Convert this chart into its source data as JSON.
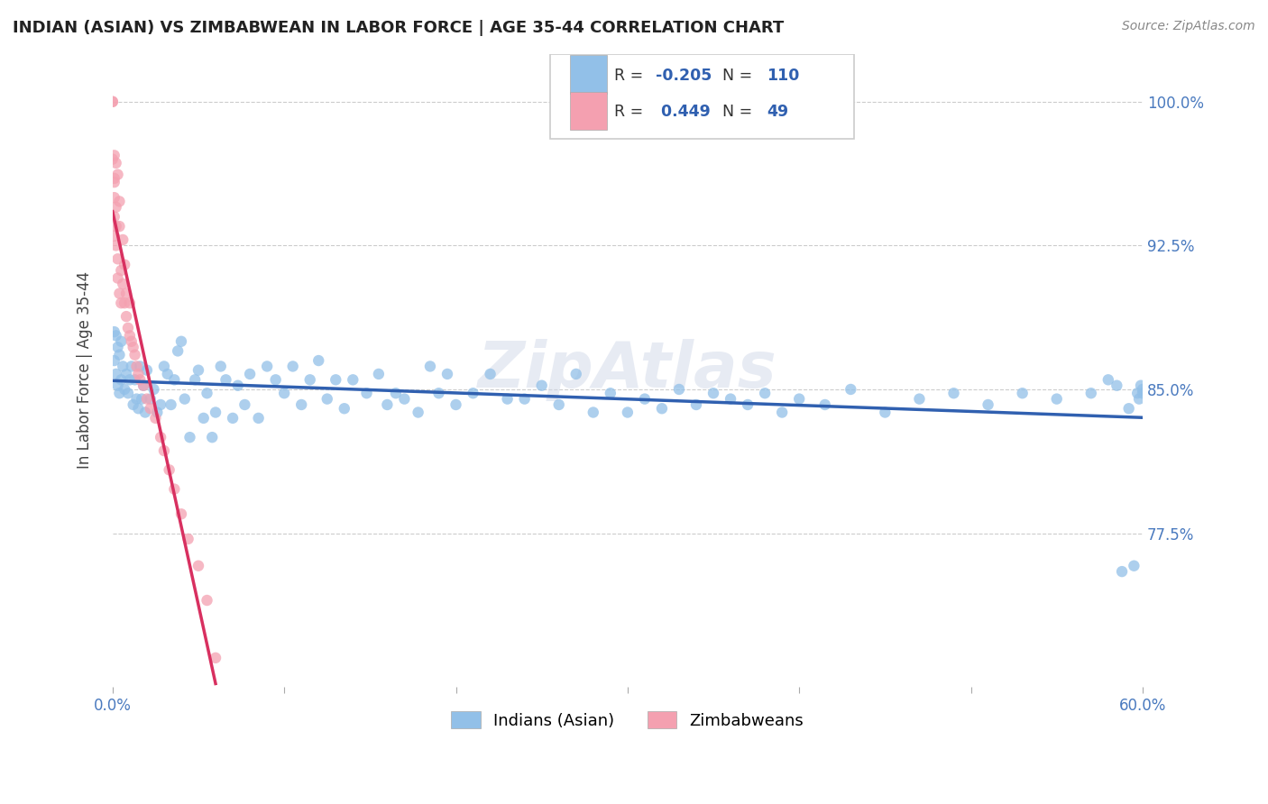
{
  "title": "INDIAN (ASIAN) VS ZIMBABWEAN IN LABOR FORCE | AGE 35-44 CORRELATION CHART",
  "source_text": "Source: ZipAtlas.com",
  "ylabel": "In Labor Force | Age 35-44",
  "x_min": 0.0,
  "x_max": 0.6,
  "y_min": 0.695,
  "y_max": 1.025,
  "x_ticks": [
    0.0,
    0.1,
    0.2,
    0.3,
    0.4,
    0.5,
    0.6
  ],
  "x_tick_labels": [
    "0.0%",
    "",
    "",
    "",
    "",
    "",
    "60.0%"
  ],
  "y_ticks": [
    0.775,
    0.85,
    0.925,
    1.0
  ],
  "y_tick_labels": [
    "77.5%",
    "85.0%",
    "92.5%",
    "100.0%"
  ],
  "grid_color": "#cccccc",
  "background_color": "#ffffff",
  "indian_color": "#92c0e8",
  "zimbabwean_color": "#f4a0b0",
  "indian_line_color": "#3060b0",
  "zimbabwean_line_color": "#d83060",
  "indian_R": -0.205,
  "indian_N": 110,
  "zimbabwean_R": 0.449,
  "zimbabwean_N": 49,
  "legend_label_indian": "Indians (Asian)",
  "legend_label_zimbabwean": "Zimbabweans",
  "watermark_text": "ZipAtlas",
  "indian_x": [
    0.001,
    0.001,
    0.002,
    0.002,
    0.003,
    0.003,
    0.004,
    0.004,
    0.005,
    0.005,
    0.006,
    0.007,
    0.008,
    0.009,
    0.01,
    0.011,
    0.012,
    0.013,
    0.014,
    0.015,
    0.016,
    0.017,
    0.018,
    0.019,
    0.02,
    0.022,
    0.024,
    0.026,
    0.028,
    0.03,
    0.032,
    0.034,
    0.036,
    0.038,
    0.04,
    0.042,
    0.045,
    0.048,
    0.05,
    0.053,
    0.055,
    0.058,
    0.06,
    0.063,
    0.066,
    0.07,
    0.073,
    0.077,
    0.08,
    0.085,
    0.09,
    0.095,
    0.1,
    0.105,
    0.11,
    0.115,
    0.12,
    0.125,
    0.13,
    0.135,
    0.14,
    0.148,
    0.155,
    0.16,
    0.165,
    0.17,
    0.178,
    0.185,
    0.19,
    0.195,
    0.2,
    0.21,
    0.22,
    0.23,
    0.24,
    0.25,
    0.26,
    0.27,
    0.28,
    0.29,
    0.3,
    0.31,
    0.32,
    0.33,
    0.34,
    0.35,
    0.36,
    0.37,
    0.38,
    0.39,
    0.4,
    0.415,
    0.43,
    0.45,
    0.47,
    0.49,
    0.51,
    0.53,
    0.55,
    0.57,
    0.58,
    0.585,
    0.588,
    0.592,
    0.595,
    0.597,
    0.598,
    0.599,
    0.6,
    0.6
  ],
  "indian_y": [
    0.88,
    0.865,
    0.878,
    0.858,
    0.872,
    0.852,
    0.868,
    0.848,
    0.875,
    0.855,
    0.862,
    0.85,
    0.858,
    0.848,
    0.855,
    0.862,
    0.842,
    0.855,
    0.845,
    0.84,
    0.862,
    0.845,
    0.852,
    0.838,
    0.86,
    0.845,
    0.85,
    0.838,
    0.842,
    0.862,
    0.858,
    0.842,
    0.855,
    0.87,
    0.875,
    0.845,
    0.825,
    0.855,
    0.86,
    0.835,
    0.848,
    0.825,
    0.838,
    0.862,
    0.855,
    0.835,
    0.852,
    0.842,
    0.858,
    0.835,
    0.862,
    0.855,
    0.848,
    0.862,
    0.842,
    0.855,
    0.865,
    0.845,
    0.855,
    0.84,
    0.855,
    0.848,
    0.858,
    0.842,
    0.848,
    0.845,
    0.838,
    0.862,
    0.848,
    0.858,
    0.842,
    0.848,
    0.858,
    0.845,
    0.845,
    0.852,
    0.842,
    0.858,
    0.838,
    0.848,
    0.838,
    0.845,
    0.84,
    0.85,
    0.842,
    0.848,
    0.845,
    0.842,
    0.848,
    0.838,
    0.845,
    0.842,
    0.85,
    0.838,
    0.845,
    0.848,
    0.842,
    0.848,
    0.845,
    0.848,
    0.855,
    0.852,
    0.755,
    0.84,
    0.758,
    0.848,
    0.845,
    0.852,
    0.848,
    0.85
  ],
  "zimb_x": [
    0.0,
    0.0,
    0.0,
    0.001,
    0.001,
    0.001,
    0.001,
    0.001,
    0.001,
    0.002,
    0.002,
    0.002,
    0.002,
    0.003,
    0.003,
    0.003,
    0.004,
    0.004,
    0.004,
    0.005,
    0.005,
    0.006,
    0.006,
    0.007,
    0.007,
    0.008,
    0.008,
    0.009,
    0.01,
    0.01,
    0.011,
    0.012,
    0.013,
    0.014,
    0.015,
    0.016,
    0.018,
    0.02,
    0.022,
    0.025,
    0.028,
    0.03,
    0.033,
    0.036,
    0.04,
    0.044,
    0.05,
    0.055,
    0.06
  ],
  "zimb_y": [
    1.0,
    1.0,
    0.97,
    0.96,
    0.95,
    0.94,
    0.93,
    0.958,
    0.972,
    0.945,
    0.935,
    0.925,
    0.968,
    0.918,
    0.908,
    0.962,
    0.9,
    0.935,
    0.948,
    0.895,
    0.912,
    0.905,
    0.928,
    0.895,
    0.915,
    0.888,
    0.9,
    0.882,
    0.878,
    0.895,
    0.875,
    0.872,
    0.868,
    0.862,
    0.858,
    0.855,
    0.852,
    0.845,
    0.84,
    0.835,
    0.825,
    0.818,
    0.808,
    0.798,
    0.785,
    0.772,
    0.758,
    0.74,
    0.71
  ]
}
